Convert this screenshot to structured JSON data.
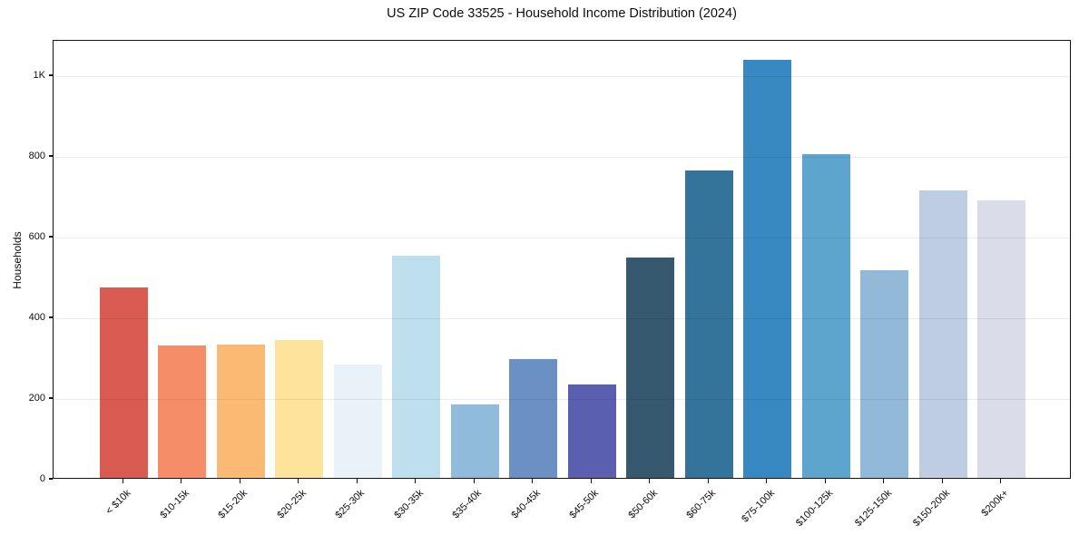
{
  "chart_data": {
    "type": "bar",
    "title": "US ZIP Code 33525 - Household Income Distribution (2024)",
    "xlabel": "",
    "ylabel": "Households",
    "categories": [
      "< $10k",
      "$10-15k",
      "$15-20k",
      "$20-25k",
      "$25-30k",
      "$30-35k",
      "$35-40k",
      "$40-45k",
      "$45-50k",
      "$50-60k",
      "$60-75k",
      "$75-100k",
      "$100-125k",
      "$125-150k",
      "$150-200k",
      "$200k+"
    ],
    "values": [
      472,
      328,
      331,
      342,
      280,
      550,
      181,
      294,
      231,
      547,
      762,
      1036,
      802,
      515,
      712,
      688
    ],
    "bar_colors": [
      "#d95b52",
      "#f58e68",
      "#fbba74",
      "#fde39b",
      "#e8f2f8",
      "#bee0ee",
      "#90bbdb",
      "#6b90c4",
      "#5b5faf",
      "#36596f",
      "#35749a",
      "#3888c1",
      "#5ea5ce",
      "#92b9d8",
      "#becde4",
      "#dadcea"
    ],
    "ylim": [
      0,
      1088
    ],
    "yticks": [
      {
        "value": 0,
        "label": "0"
      },
      {
        "value": 200,
        "label": "200"
      },
      {
        "value": 400,
        "label": "400"
      },
      {
        "value": 600,
        "label": "600"
      },
      {
        "value": 800,
        "label": "800"
      },
      {
        "value": 1000,
        "label": "1K"
      }
    ],
    "grid": "horizontal",
    "legend": "none",
    "x_tick_rotation_deg": 45,
    "colors": {
      "background": "#ffffff",
      "spine": "#141414",
      "gridline": "#e8e8e8",
      "text": "#0d0d0d"
    }
  }
}
